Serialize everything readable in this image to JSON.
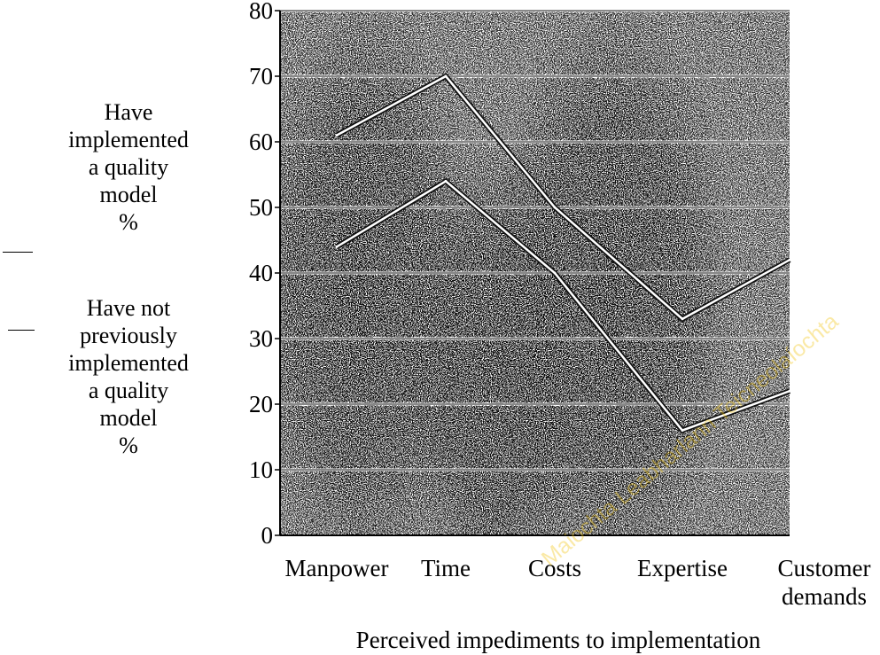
{
  "chart_data": {
    "type": "line",
    "categories": [
      "Manpower",
      "Time",
      "Costs",
      "Expertise",
      "Customer demands"
    ],
    "category_lines": [
      [
        "Manpower"
      ],
      [
        "Time"
      ],
      [
        "Costs"
      ],
      [
        "Expertise"
      ],
      [
        "Customer",
        "demands"
      ]
    ],
    "series": [
      {
        "name": "Have implemented a quality model %",
        "name_lines": [
          "Have",
          "implemented",
          "a quality",
          "model",
          "%"
        ],
        "values": [
          61,
          70,
          50,
          33,
          42
        ]
      },
      {
        "name": "Have not previously implemented a quality model %",
        "name_lines": [
          "Have not",
          "previously",
          "implemented",
          "a quality",
          "model",
          "%"
        ],
        "values": [
          44,
          54,
          40,
          16,
          22
        ]
      }
    ],
    "xlabel": "Perceived impediments to implementation",
    "ylim": [
      0,
      80
    ],
    "yticks": [
      0,
      10,
      20,
      30,
      40,
      50,
      60,
      70,
      80
    ],
    "grid": true,
    "legend_position": "left",
    "watermark": "Maiochta Leabharlann Teicneolaíochta"
  }
}
